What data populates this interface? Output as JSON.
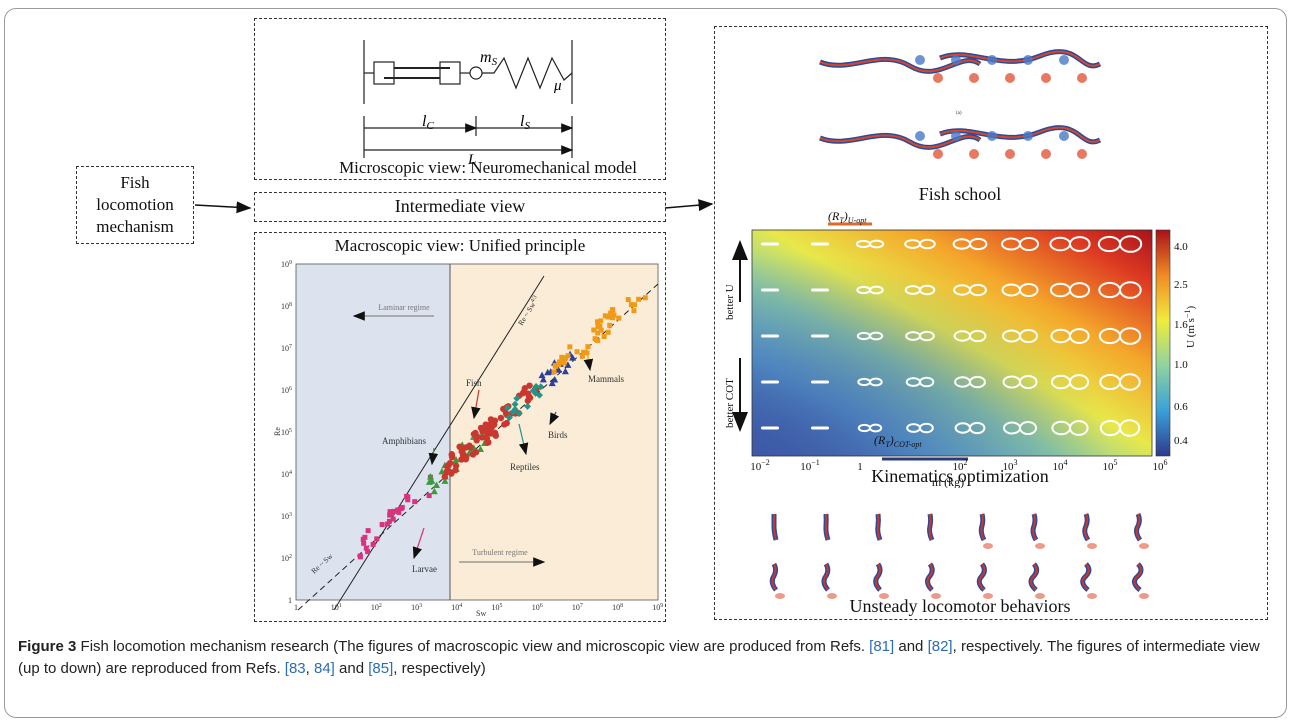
{
  "left_box": {
    "line1": "Fish",
    "line2": "locomotion",
    "line3": "mechanism"
  },
  "micro": {
    "title": "Microscopic view: Neuromechanical model",
    "ms": "m",
    "ms_sub": "S",
    "mu": "μ",
    "lc": "l",
    "lc_sub": "C",
    "ls": "l",
    "ls_sub": "S",
    "L": "L"
  },
  "intermediate": {
    "title": "Intermediate view"
  },
  "macro": {
    "title": "Macroscopic view: Unified principle",
    "laminar": "Laminar regime",
    "turbulent": "Turbulent regime",
    "xlabel": "Sw",
    "ylabel": "Re",
    "fit1": "Re ~ Sw",
    "fit2": "Re ~ Sw",
    "fit2_exp": "4/3",
    "yticks": [
      "10",
      "10",
      "10",
      "10",
      "10",
      "10",
      "10",
      "10",
      "1"
    ],
    "ytick_exp": [
      "9",
      "8",
      "7",
      "6",
      "5",
      "4",
      "3",
      "2",
      "1"
    ],
    "xticks": [
      "1",
      "10",
      "10",
      "10",
      "10",
      "10",
      "10",
      "10",
      "10",
      "10"
    ],
    "xtick_exp": [
      "",
      "1",
      "2",
      "3",
      "4",
      "5",
      "6",
      "7",
      "8",
      "9"
    ],
    "groups": {
      "larvae": "Larvae",
      "amphibians": "Amphibians",
      "fish": "Fish",
      "reptiles": "Reptiles",
      "birds": "Birds",
      "mammals": "Mammals"
    }
  },
  "right": {
    "school_title": "Fish school",
    "school_label": "(a)",
    "kin_title": "Kinematics optimization",
    "top_label": "(R",
    "top_sub": "T",
    "top_close": ")",
    "top_sub2": "U-opt",
    "bottom_label": "(R",
    "bottom_sub": "T",
    "bottom_close": ")",
    "bottom_sub2": "COT-opt",
    "better_u": "better U",
    "better_cot": "better COT",
    "xlabel": "m (kg)",
    "xticks": [
      "10",
      "10",
      "1",
      "10",
      "10",
      "10",
      "10",
      "10",
      "10"
    ],
    "xtick_exp": [
      "−2",
      "−1",
      "",
      "1",
      "2",
      "3",
      "4",
      "5",
      "6"
    ],
    "cbar_label": "U (m s",
    "cbar_exp": "−1",
    "cbar_close": ")",
    "cbar_ticks": [
      "4.0",
      "2.5",
      "1.6",
      "1.0",
      "0.6",
      "0.4"
    ],
    "unsteady_title": "Unsteady locomotor behaviors"
  },
  "caption": {
    "fig": "Figure 3",
    "t1": " Fish locomotion mechanism research (The figures of macroscopic view and microscopic view are produced from Refs. ",
    "r81": "[81]",
    "t2": " and ",
    "r82": "[82]",
    "t3": ", respectively. The figures of intermediate view (up to down) are reproduced from Refs. ",
    "r83": "[83",
    "t4": ", ",
    "r84": "84]",
    "t5": " and ",
    "r85": "[85]",
    "t6": ", respectively)"
  },
  "colors": {
    "laminar_bg": "#dde2ef",
    "turbulent_bg": "#faecd6",
    "larvae": "#d9337f",
    "amphibians": "#3d9b3d",
    "fish": "#c8382e",
    "reptiles": "#22958a",
    "birds": "#2b3f9e",
    "mammals": "#ef9a18"
  }
}
